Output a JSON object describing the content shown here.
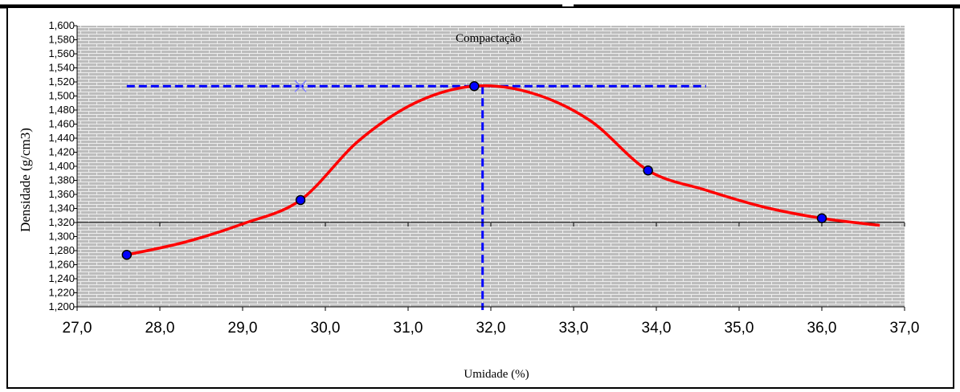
{
  "chart_data": {
    "type": "line",
    "title": "Compactação",
    "xlabel": "Umidade (%)",
    "ylabel": "Densidade (g/cm3)",
    "xlim": [
      27.0,
      37.0
    ],
    "ylim": [
      1.2,
      1.6
    ],
    "x_ticks": [
      "27,0",
      "28,0",
      "29,0",
      "30,0",
      "31,0",
      "32,0",
      "33,0",
      "34,0",
      "35,0",
      "36,0",
      "37,0"
    ],
    "y_ticks": [
      "1,200",
      "1,220",
      "1,240",
      "1,260",
      "1,280",
      "1,300",
      "1,320",
      "1,340",
      "1,360",
      "1,380",
      "1,400",
      "1,420",
      "1,440",
      "1,460",
      "1,480",
      "1,500",
      "1,520",
      "1,540",
      "1,560",
      "1,580",
      "1,600"
    ],
    "grid": false,
    "background_pattern": "gray brick",
    "series": [
      {
        "color": "#ff0000",
        "kind": "smooth-line",
        "points": [
          {
            "x": 27.6,
            "y": 1.274
          },
          {
            "x": 28.3,
            "y": 1.292
          },
          {
            "x": 29.0,
            "y": 1.318
          },
          {
            "x": 29.7,
            "y": 1.352
          },
          {
            "x": 30.4,
            "y": 1.436
          },
          {
            "x": 31.1,
            "y": 1.491
          },
          {
            "x": 31.8,
            "y": 1.514
          },
          {
            "x": 32.5,
            "y": 1.504
          },
          {
            "x": 33.2,
            "y": 1.465
          },
          {
            "x": 33.9,
            "y": 1.394
          },
          {
            "x": 34.6,
            "y": 1.366
          },
          {
            "x": 35.3,
            "y": 1.342
          },
          {
            "x": 36.0,
            "y": 1.326
          },
          {
            "x": 36.7,
            "y": 1.316
          }
        ]
      },
      {
        "color": "#0000ff",
        "kind": "markers",
        "points": [
          {
            "x": 27.6,
            "y": 1.274
          },
          {
            "x": 29.7,
            "y": 1.352
          },
          {
            "x": 31.8,
            "y": 1.514
          },
          {
            "x": 33.9,
            "y": 1.394
          },
          {
            "x": 36.0,
            "y": 1.326
          }
        ]
      }
    ],
    "reference_lines": {
      "color": "#0000ff",
      "horizontal": {
        "y": 1.514,
        "x_from": 27.6,
        "x_to": 34.6
      },
      "vertical": {
        "x": 31.9,
        "y_from": 1.2,
        "y_to": 1.514
      },
      "marker_x": {
        "x": 29.7,
        "y": 1.514
      }
    },
    "baseline_y": 1.32
  }
}
